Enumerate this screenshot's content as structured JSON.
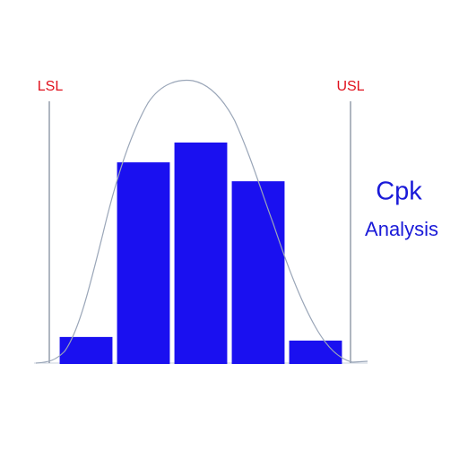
{
  "chart_data": {
    "type": "bar",
    "title": "Cpk",
    "subtitle": "Analysis",
    "annotations": [
      "LSL",
      "USL"
    ],
    "categories": [
      null,
      null,
      null,
      null,
      null
    ],
    "values": [
      30,
      224,
      246,
      203,
      26
    ],
    "color": "#1a10f0"
  }
}
